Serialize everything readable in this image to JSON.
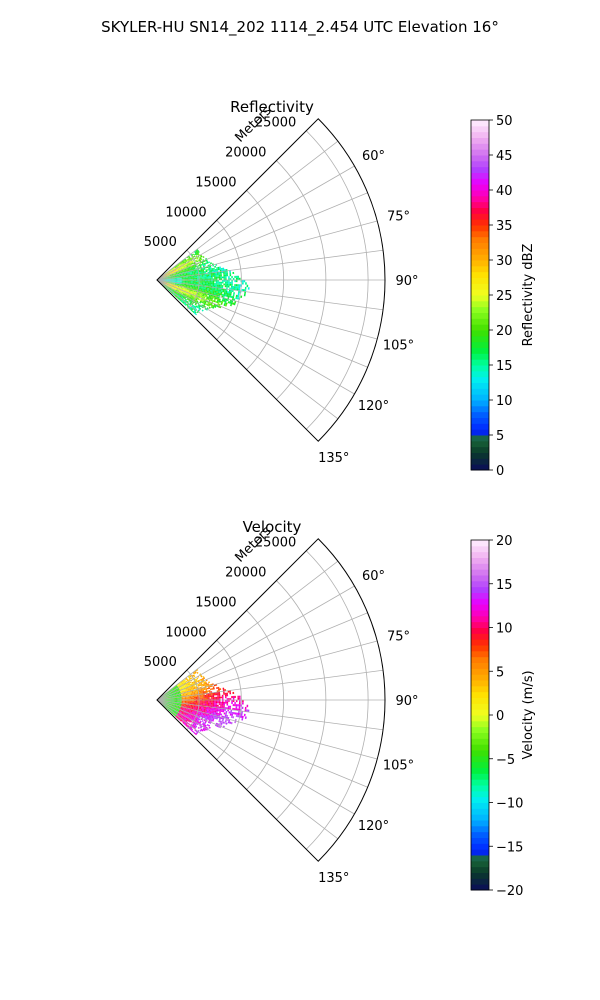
{
  "title": "SKYLER-HU  SN14_202  1114_2.454 UTC Elevation 16°",
  "chart_data": [
    {
      "type": "heatmap",
      "projection": "polar-sector",
      "title": "Reflectivity",
      "range_label": "Meters",
      "range_ticks": [
        5000,
        10000,
        15000,
        20000,
        25000
      ],
      "range_max": 27000,
      "azimuth_range": [
        45,
        135
      ],
      "azimuth_ticks": [
        "60°",
        "75°",
        "90°",
        "105°",
        "120°",
        "135°"
      ],
      "colorbar": {
        "label": "Reflectivity dBZ",
        "min": 0,
        "max": 50,
        "ticks": [
          "0",
          "5",
          "10",
          "15",
          "20",
          "25",
          "30",
          "35",
          "40",
          "45",
          "50"
        ]
      },
      "echo_extent_m": 11000
    },
    {
      "type": "heatmap",
      "projection": "polar-sector",
      "title": "Velocity",
      "range_label": "Meters",
      "range_ticks": [
        5000,
        10000,
        15000,
        20000,
        25000
      ],
      "range_max": 27000,
      "azimuth_range": [
        45,
        135
      ],
      "azimuth_ticks": [
        "60°",
        "75°",
        "90°",
        "105°",
        "120°",
        "135°"
      ],
      "colorbar": {
        "label": "Velocity (m/s)",
        "min": -20,
        "max": 20,
        "ticks": [
          "−20",
          "−15",
          "−10",
          "−5",
          "0",
          "5",
          "10",
          "15",
          "20"
        ]
      },
      "echo_extent_m": 11000
    }
  ]
}
